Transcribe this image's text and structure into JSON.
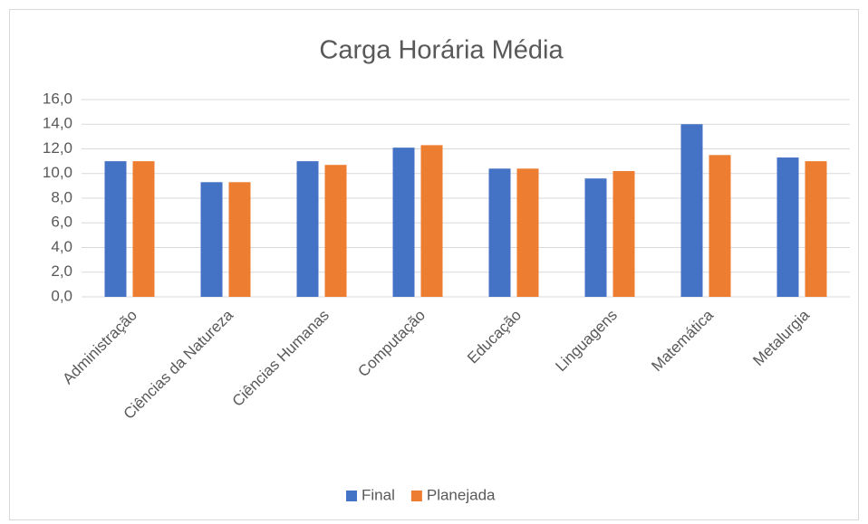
{
  "chart_data": {
    "type": "bar",
    "title": "Carga Horária Média",
    "categories": [
      "Administração",
      "Ciências da Natureza",
      "Ciências Humanas",
      "Computação",
      "Educação",
      "Linguagens",
      "Matemática",
      "Metalurgia"
    ],
    "series": [
      {
        "name": "Final",
        "color": "#4472c4",
        "values": [
          11.0,
          9.3,
          11.0,
          12.1,
          10.4,
          9.6,
          14.0,
          11.3
        ]
      },
      {
        "name": "Planejada",
        "color": "#ed7d31",
        "values": [
          11.0,
          9.3,
          10.7,
          12.3,
          10.4,
          10.2,
          11.5,
          11.0
        ]
      }
    ],
    "ylim": [
      0,
      16
    ],
    "yticks": [
      {
        "value": 0,
        "label": "0,0"
      },
      {
        "value": 2,
        "label": "2,0"
      },
      {
        "value": 4,
        "label": "4,0"
      },
      {
        "value": 6,
        "label": "6,0"
      },
      {
        "value": 8,
        "label": "8,0"
      },
      {
        "value": 10,
        "label": "10,0"
      },
      {
        "value": 12,
        "label": "12,0"
      },
      {
        "value": 14,
        "label": "14,0"
      },
      {
        "value": 16,
        "label": "16,0"
      }
    ],
    "grid": true,
    "legend": "bottom"
  }
}
